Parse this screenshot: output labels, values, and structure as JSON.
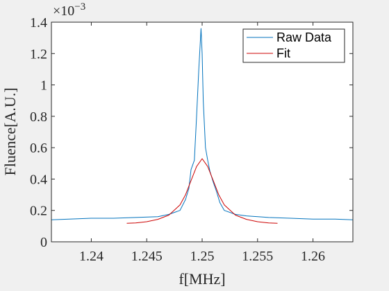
{
  "chart_data": {
    "type": "line",
    "title": "",
    "xlabel": "f[MHz]",
    "ylabel": "Fluence[A.U.]",
    "y_exponent_base": "×10",
    "y_exponent_power": "−3",
    "xlim": [
      1.2364,
      1.2636
    ],
    "ylim": [
      0,
      1.4
    ],
    "x_ticks": [
      1.24,
      1.245,
      1.25,
      1.255,
      1.26
    ],
    "x_tick_labels": [
      "1.24",
      "1.245",
      "1.25",
      "1.255",
      "1.26"
    ],
    "y_ticks": [
      0,
      0.2,
      0.4,
      0.6,
      0.8,
      1.0,
      1.2,
      1.4
    ],
    "y_tick_labels": [
      "0",
      "0.2",
      "0.4",
      "0.6",
      "0.8",
      "1",
      "1.2",
      "1.4"
    ],
    "grid": false,
    "legend_position": "top-right",
    "series": [
      {
        "name": "Raw Data",
        "color": "#0072bd",
        "x": [
          1.2364,
          1.238,
          1.24,
          1.242,
          1.244,
          1.246,
          1.247,
          1.248,
          1.2485,
          1.2488,
          1.249,
          1.2493,
          1.2495,
          1.2497,
          1.2499,
          1.25,
          1.2501,
          1.2503,
          1.2505,
          1.2507,
          1.251,
          1.2513,
          1.2516,
          1.252,
          1.253,
          1.254,
          1.256,
          1.258,
          1.26,
          1.262,
          1.2636
        ],
        "values": [
          0.14,
          0.145,
          0.15,
          0.15,
          0.155,
          0.16,
          0.175,
          0.2,
          0.27,
          0.34,
          0.46,
          0.52,
          0.8,
          1.1,
          1.36,
          1.2,
          0.9,
          0.6,
          0.52,
          0.45,
          0.38,
          0.32,
          0.25,
          0.2,
          0.175,
          0.165,
          0.155,
          0.15,
          0.145,
          0.145,
          0.14
        ]
      },
      {
        "name": "Fit",
        "color": "#cc0000",
        "x": [
          1.2432,
          1.244,
          1.245,
          1.246,
          1.247,
          1.248,
          1.2485,
          1.249,
          1.2495,
          1.25,
          1.2505,
          1.251,
          1.2515,
          1.252,
          1.253,
          1.254,
          1.255,
          1.256,
          1.2568
        ],
        "values": [
          0.118,
          0.12,
          0.128,
          0.143,
          0.17,
          0.235,
          0.3,
          0.39,
          0.48,
          0.53,
          0.48,
          0.39,
          0.3,
          0.235,
          0.17,
          0.143,
          0.128,
          0.12,
          0.118
        ]
      }
    ]
  }
}
